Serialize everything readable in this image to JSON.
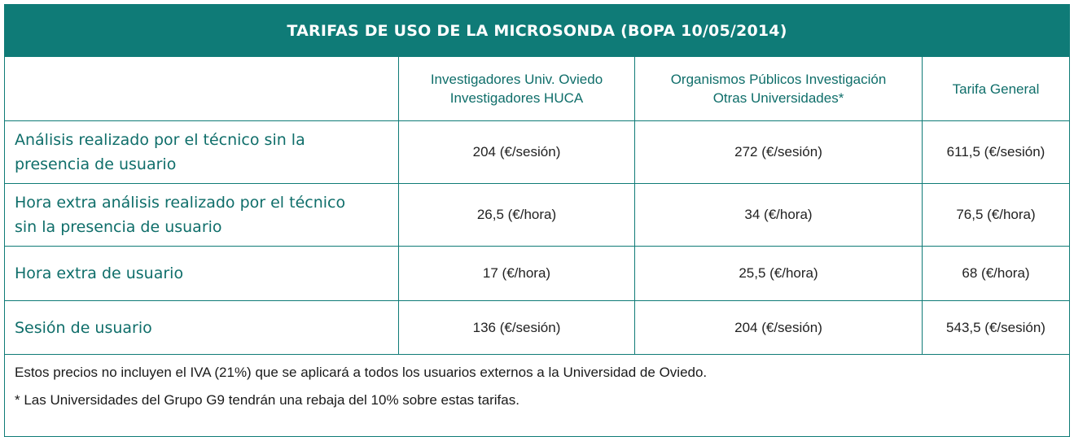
{
  "title": "TARIFAS DE USO DE LA MICROSONDA (BOPA 10/05/2014)",
  "columns": [
    {
      "lines": [
        "Investigadores Univ. Oviedo",
        "Investigadores HUCA"
      ]
    },
    {
      "lines": [
        "Organismos Públicos Investigación",
        "Otras Universidades*"
      ]
    },
    {
      "lines": [
        "Tarifa General"
      ]
    }
  ],
  "rows": [
    {
      "label_lines": [
        "Análisis realizado por el técnico sin la",
        "presencia de usuario"
      ],
      "values": [
        "204 (€/sesión)",
        "272 (€/sesión)",
        "611,5 (€/sesión)"
      ]
    },
    {
      "label_lines": [
        "Hora extra análisis realizado por el técnico",
        "sin la presencia de usuario"
      ],
      "values": [
        "26,5 (€/hora)",
        "34 (€/hora)",
        "76,5 (€/hora)"
      ]
    },
    {
      "label_lines": [
        "Hora extra de usuario"
      ],
      "values": [
        "17 (€/hora)",
        "25,5 (€/hora)",
        "68 (€/hora)"
      ]
    },
    {
      "label_lines": [
        "Sesión de usuario"
      ],
      "values": [
        "136 (€/sesión)",
        "204 (€/sesión)",
        "543,5 (€/sesión)"
      ]
    }
  ],
  "notes": [
    "Estos precios no incluyen el IVA (21%) que se aplicará a todos los usuarios externos a la Universidad de Oviedo.",
    "* Las Universidades del Grupo G9 tendrán una rebaja del 10% sobre estas tarifas."
  ],
  "colors": {
    "header_bg": "#0f7b77",
    "accent_text": "#0f6e6a"
  }
}
